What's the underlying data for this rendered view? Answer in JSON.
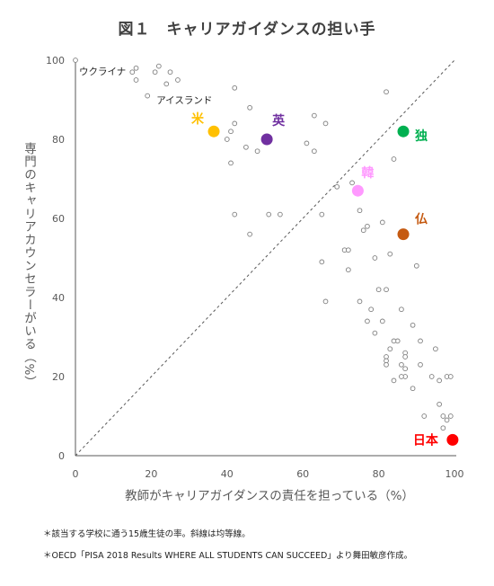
{
  "title": "図１　キャリアガイダンスの担い手",
  "chart_data": {
    "type": "scatter",
    "title": "図１　キャリアガイダンスの担い手",
    "xlabel": "教師がキャリアガイダンスの責任を担っている（%）",
    "ylabel": "専門のキャリアカウンセラーがいる（%）",
    "xlim": [
      0,
      100
    ],
    "ylim": [
      0,
      100
    ],
    "xticks": [
      "0",
      "20",
      "40",
      "60",
      "80",
      "100"
    ],
    "yticks": [
      "0",
      "20",
      "40",
      "60",
      "80",
      "100"
    ],
    "grid": false,
    "diagonal_line": "y = x (dashed)",
    "others": {
      "color": "#7f7f7f",
      "points": [
        [
          0,
          100
        ],
        [
          15,
          97
        ],
        [
          16,
          98
        ],
        [
          21,
          97
        ],
        [
          22,
          98.5
        ],
        [
          25,
          97
        ],
        [
          16,
          95
        ],
        [
          27,
          95
        ],
        [
          24,
          94
        ],
        [
          19,
          91
        ],
        [
          42,
          93
        ],
        [
          46,
          88
        ],
        [
          41,
          82
        ],
        [
          42,
          84
        ],
        [
          40,
          80
        ],
        [
          45,
          78
        ],
        [
          48,
          77
        ],
        [
          63,
          86
        ],
        [
          66,
          84
        ],
        [
          61,
          79
        ],
        [
          63,
          77
        ],
        [
          41,
          74
        ],
        [
          42,
          61
        ],
        [
          51,
          61
        ],
        [
          54,
          61
        ],
        [
          46,
          56
        ],
        [
          65,
          61
        ],
        [
          69,
          68
        ],
        [
          73,
          69
        ],
        [
          75,
          62
        ],
        [
          82,
          92
        ],
        [
          84,
          75
        ],
        [
          81,
          59
        ],
        [
          76,
          57
        ],
        [
          77,
          58
        ],
        [
          83,
          51
        ],
        [
          79,
          50
        ],
        [
          65,
          49
        ],
        [
          71,
          52
        ],
        [
          72,
          52
        ],
        [
          72,
          47
        ],
        [
          90,
          48
        ],
        [
          66,
          39
        ],
        [
          75,
          39
        ],
        [
          80,
          42
        ],
        [
          82,
          42
        ],
        [
          78,
          37
        ],
        [
          81,
          34
        ],
        [
          89,
          33
        ],
        [
          77,
          34
        ],
        [
          86,
          37
        ],
        [
          85,
          29
        ],
        [
          91,
          29
        ],
        [
          84,
          29
        ],
        [
          79,
          31
        ],
        [
          83,
          27
        ],
        [
          87,
          26
        ],
        [
          87,
          25
        ],
        [
          95,
          27
        ],
        [
          82,
          25
        ],
        [
          82,
          24
        ],
        [
          82,
          23
        ],
        [
          86,
          23
        ],
        [
          91,
          23
        ],
        [
          87,
          22
        ],
        [
          87,
          20
        ],
        [
          86,
          20
        ],
        [
          94,
          20
        ],
        [
          98,
          20
        ],
        [
          99,
          20
        ],
        [
          96,
          19
        ],
        [
          84,
          19
        ],
        [
          89,
          17
        ],
        [
          96,
          13
        ],
        [
          92,
          10
        ],
        [
          97,
          10
        ],
        [
          98,
          9
        ],
        [
          99,
          10
        ],
        [
          97,
          7
        ]
      ]
    },
    "labeled_points": [
      {
        "label": "ウクライナ",
        "x": 0,
        "y": 100
      },
      {
        "label": "アイスランド",
        "x": 24,
        "y": 90
      }
    ],
    "highlighted": [
      {
        "name": "米",
        "x": 36.5,
        "y": 82,
        "color": "#ffc000"
      },
      {
        "name": "英",
        "x": 50.5,
        "y": 80,
        "color": "#7030a0"
      },
      {
        "name": "独",
        "x": 86.5,
        "y": 82,
        "color": "#00b050"
      },
      {
        "name": "韓",
        "x": 74.5,
        "y": 67,
        "color": "#ff99ff"
      },
      {
        "name": "仏",
        "x": 86.5,
        "y": 56,
        "color": "#c55a11"
      },
      {
        "name": "日本",
        "x": 99.5,
        "y": 4,
        "color": "#ff0000"
      }
    ]
  },
  "notes": [
    "＊該当する学校に通う15歳生徒の率。斜線は均等線。",
    "＊OECD「PISA 2018 Results WHERE ALL STUDENTS CAN SUCCEED」より舞田敏彦作成。"
  ]
}
